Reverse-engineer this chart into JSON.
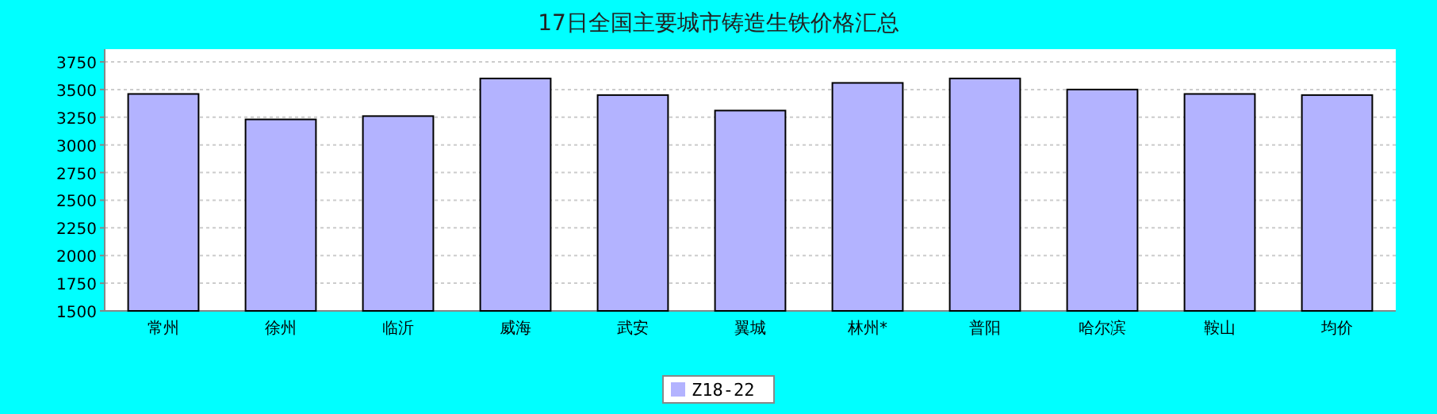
{
  "chart_data": {
    "type": "bar",
    "title": "17日全国主要城市铸造生铁价格汇总",
    "categories": [
      "常州",
      "徐州",
      "临沂",
      "威海",
      "武安",
      "翼城",
      "林州*",
      "普阳",
      "哈尔滨",
      "鞍山",
      "均价"
    ],
    "series": [
      {
        "name": "Z18-22",
        "color": "#b3b3ff",
        "values": [
          3460,
          3230,
          3260,
          3600,
          3450,
          3310,
          3560,
          3600,
          3500,
          3460,
          3450
        ]
      }
    ],
    "ylim": [
      1500,
      3750
    ],
    "yticks": [
      1500,
      1750,
      2000,
      2250,
      2500,
      2750,
      3000,
      3250,
      3500,
      3750
    ],
    "grid": "y",
    "legend": "bottom"
  }
}
